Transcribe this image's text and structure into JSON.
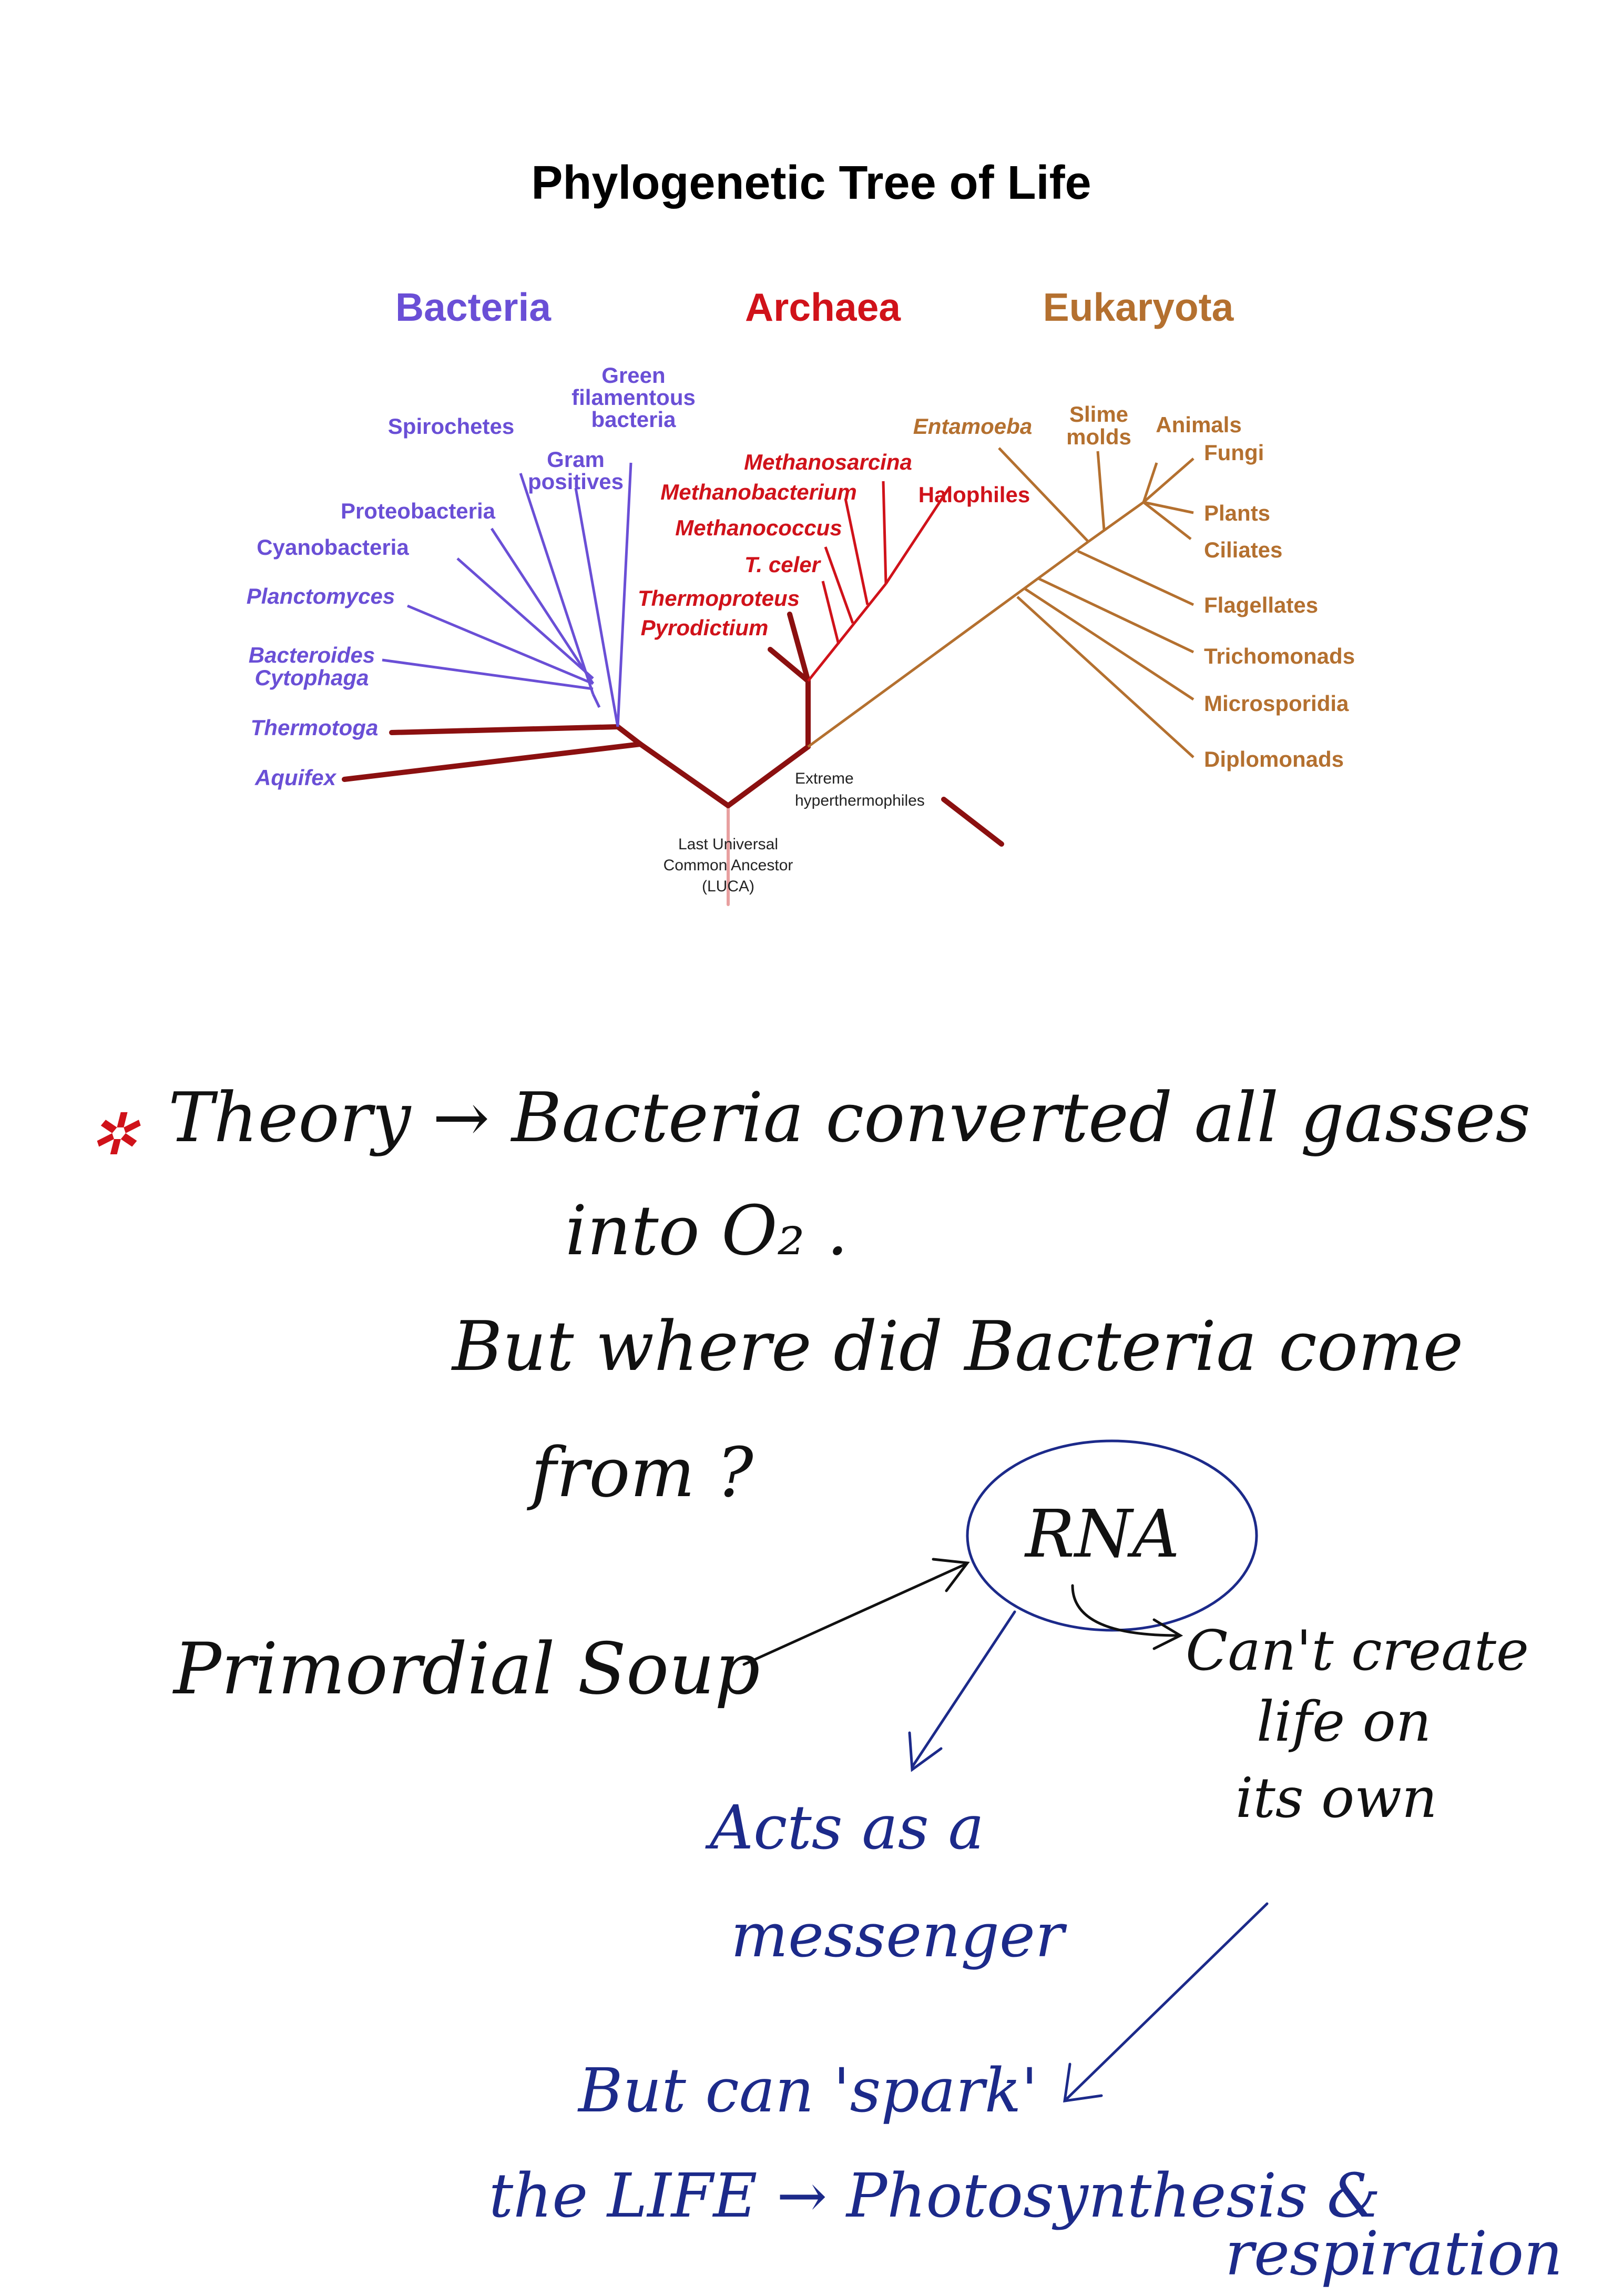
{
  "figure": {
    "title": "Phylogenetic Tree of Life",
    "domains": {
      "bacteria": "Bacteria",
      "archaea": "Archaea",
      "eukaryota": "Eukaryota"
    },
    "colors": {
      "bacteria": "#6a4fd6",
      "archaea": "#d0121a",
      "eukaryota": "#b4702f",
      "hyperthermophile_trunk": "#8b1010"
    },
    "bacteria_taxa": {
      "green_filamentous": [
        "Green",
        "filamentous",
        "bacteria"
      ],
      "spirochetes": "Spirochetes",
      "gram_positives": [
        "Gram",
        "positives"
      ],
      "proteobacteria": "Proteobacteria",
      "cyanobacteria": "Cyanobacteria",
      "planctomyces": "Planctomyces",
      "bacteroides": [
        "Bacteroides",
        "Cytophaga"
      ],
      "thermotoga": "Thermotoga",
      "aquifex": "Aquifex"
    },
    "archaea_taxa": {
      "methanosarcina": "Methanosarcina",
      "methanobacterium": "Methanobacterium",
      "halophiles": "Halophiles",
      "methanococcus": "Methanococcus",
      "t_celer": "T. celer",
      "thermoproteus": "Thermoproteus",
      "pyrodictium": "Pyrodictium"
    },
    "eukaryota_taxa": {
      "entamoeba": "Entamoeba",
      "slime_molds": [
        "Slime",
        "molds"
      ],
      "animals": "Animals",
      "fungi": "Fungi",
      "plants": "Plants",
      "ciliates": "Ciliates",
      "flagellates": "Flagellates",
      "trichomonads": "Trichomonads",
      "microsporidia": "Microsporidia",
      "diplomonads": "Diplomonads"
    },
    "legend_extreme": [
      "Extreme",
      "hyperthermophiles"
    ],
    "luca": [
      "Last Universal",
      "Common Ancestor",
      "(LUCA)"
    ]
  },
  "notes": {
    "star": "✲",
    "theory_line1": "Theory → Bacteria converted all gasses",
    "theory_line2": "into O₂ .",
    "question_line1": "But where did Bacteria come",
    "question_line2": "from ?",
    "primordial_soup": "Primordial Soup",
    "rna": "RNA",
    "cant_create_1": "Can't create",
    "cant_create_2": "life on",
    "cant_create_3": "its own",
    "acts_as_1": "Acts as a",
    "acts_as_2": "messenger",
    "spark_line1": "But can 'spark'",
    "spark_line2": "the LIFE → Photosynthesis &",
    "spark_line3": "respiration",
    "ink_colors": {
      "black": "#111111",
      "blue": "#1c2a8a",
      "red": "#d0121a"
    }
  }
}
